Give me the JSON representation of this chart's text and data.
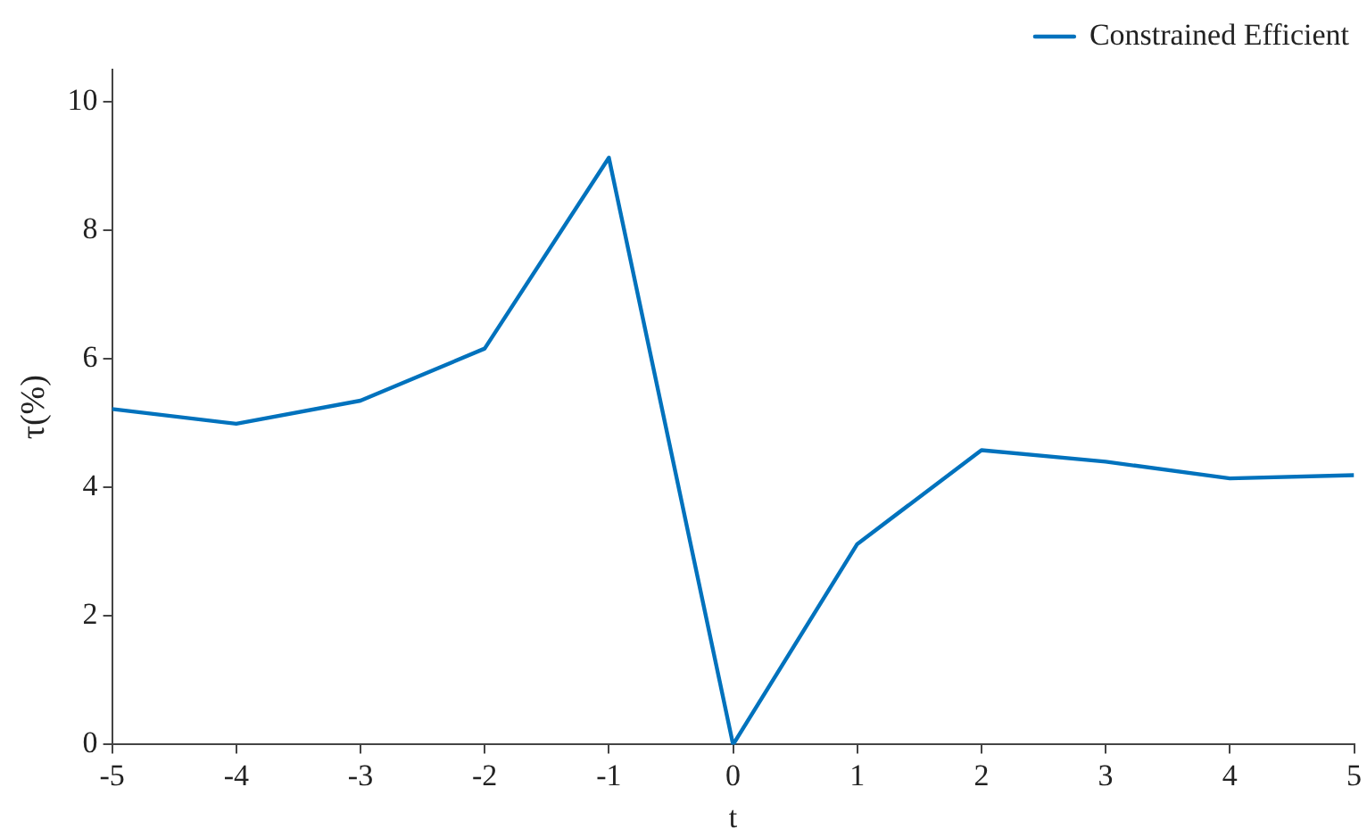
{
  "chart_data": {
    "type": "line",
    "xlabel": "t",
    "ylabel": "τ(%)",
    "x": [
      -5,
      -4,
      -3,
      -2,
      -1,
      0,
      1,
      2,
      3,
      4,
      5
    ],
    "series": [
      {
        "name": "Constrained Efficient",
        "color": "#0072bd",
        "values": [
          5.22,
          4.99,
          5.35,
          6.16,
          9.13,
          0,
          3.12,
          4.58,
          4.4,
          4.14,
          4.19
        ]
      }
    ],
    "xlim": [
      -5,
      5
    ],
    "xticks": [
      -5,
      -4,
      -3,
      -2,
      -1,
      0,
      1,
      2,
      3,
      4,
      5
    ],
    "ylim": [
      0,
      10.5
    ],
    "yticks": [
      0,
      2,
      4,
      6,
      8,
      10
    ],
    "grid": false,
    "legend": "top right",
    "marker": "none",
    "line_style": "solid"
  }
}
